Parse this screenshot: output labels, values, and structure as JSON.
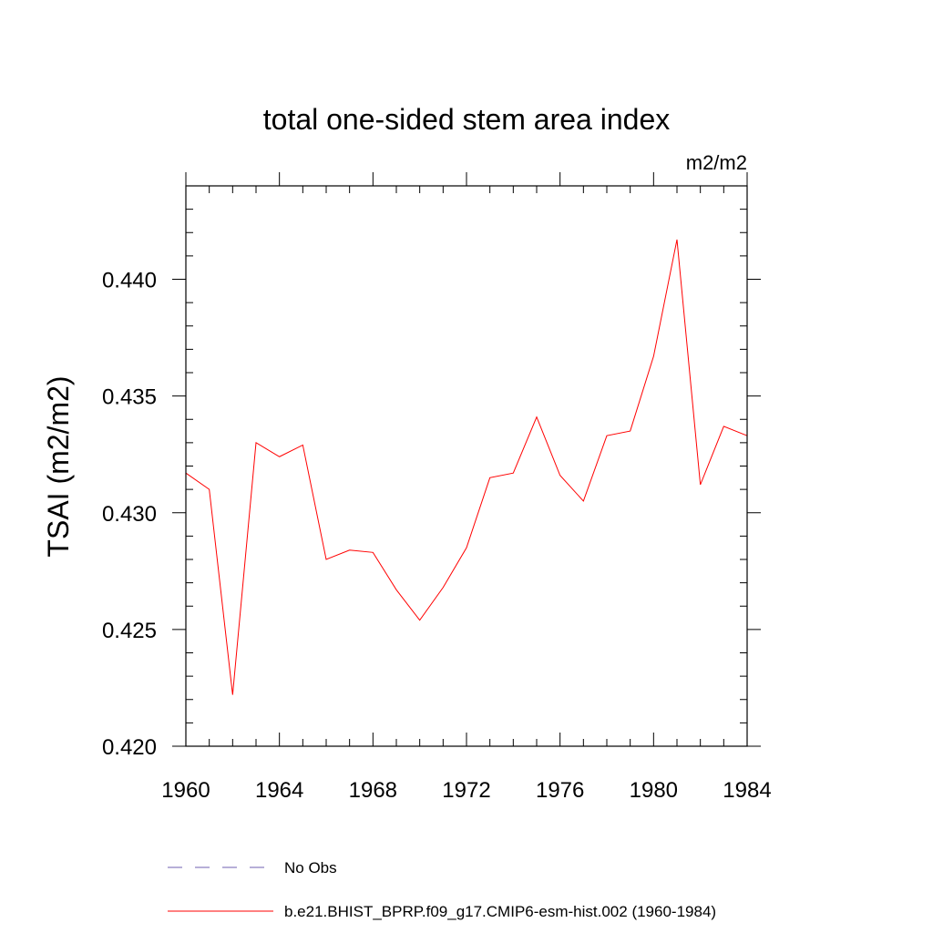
{
  "chart_data": {
    "type": "line",
    "title": "total one-sided stem area index",
    "units": "m2/m2",
    "xlabel": "",
    "ylabel": "TSAI  (m2/m2)",
    "xlim": [
      1960,
      1984
    ],
    "ylim": [
      0.42,
      0.444
    ],
    "x_ticks": [
      1960,
      1964,
      1968,
      1972,
      1976,
      1980,
      1984
    ],
    "x_tick_labels": [
      "1960",
      "1964",
      "1968",
      "1972",
      "1976",
      "1980",
      "1984"
    ],
    "y_ticks": [
      0.42,
      0.425,
      0.43,
      0.435,
      0.44
    ],
    "y_tick_labels": [
      "0.420",
      "0.425",
      "0.430",
      "0.435",
      "0.440"
    ],
    "grid": false,
    "legend_position": "bottom",
    "series": [
      {
        "name": "No Obs",
        "color": "#6f5fb0",
        "style": "dashed",
        "x": [],
        "values": []
      },
      {
        "name": "b.e21.BHIST_BPRP.f09_g17.CMIP6-esm-hist.002 (1960-1984)",
        "color": "#ff0000",
        "style": "solid",
        "x": [
          1960,
          1961,
          1962,
          1963,
          1964,
          1965,
          1966,
          1967,
          1968,
          1969,
          1970,
          1971,
          1972,
          1973,
          1974,
          1975,
          1976,
          1977,
          1978,
          1979,
          1980,
          1981,
          1982,
          1983,
          1984
        ],
        "values": [
          0.4317,
          0.431,
          0.4222,
          0.433,
          0.4324,
          0.4329,
          0.428,
          0.4284,
          0.4283,
          0.4267,
          0.4254,
          0.4268,
          0.4285,
          0.4315,
          0.4317,
          0.4341,
          0.4316,
          0.4305,
          0.4333,
          0.4335,
          0.4367,
          0.4417,
          0.4312,
          0.4337,
          0.4333
        ]
      }
    ]
  }
}
